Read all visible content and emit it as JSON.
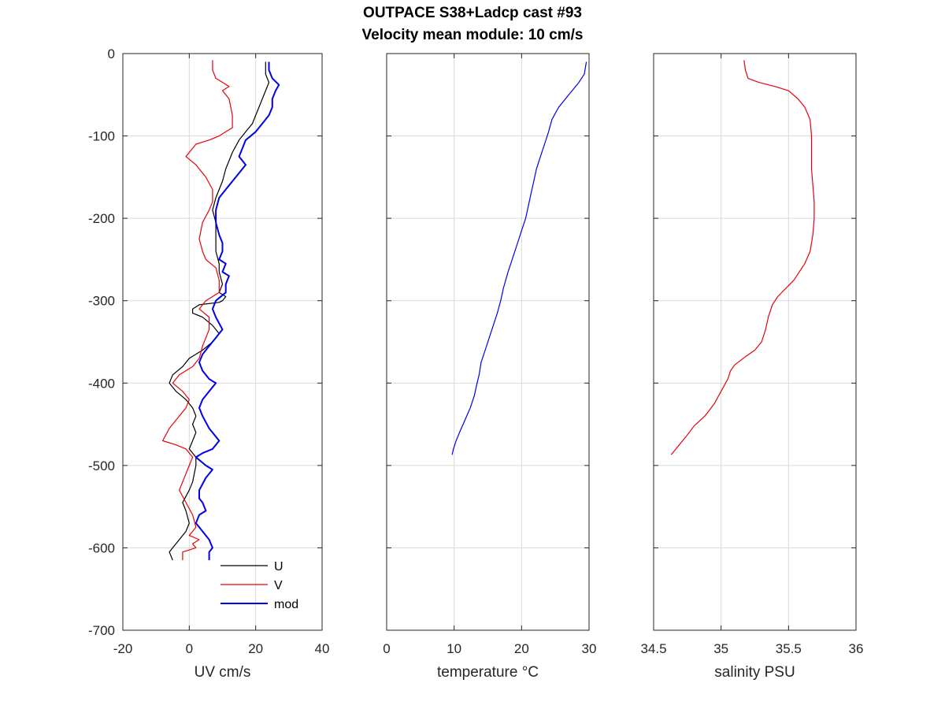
{
  "figure": {
    "title_line1": "OUTPACE S38+Ladcp cast #93",
    "title_line2": "Velocity mean module:  10 cm/s"
  },
  "colors": {
    "u": "#000000",
    "v": "#e8000b",
    "mod": "#0000ee",
    "temperature": "#0000ee",
    "salinity": "#e8000b",
    "grid": "#d9d9d9",
    "axis": "#262626"
  },
  "chart_data": [
    {
      "type": "line",
      "xlabel": "UV cm/s",
      "ylabel": "",
      "xlim": [
        -20,
        40
      ],
      "ylim": [
        -700,
        0
      ],
      "xticks": [
        -20,
        0,
        20,
        40
      ],
      "yticks": [
        0,
        -100,
        -200,
        -300,
        -400,
        -500,
        -600,
        -700
      ],
      "grid": true,
      "legend_position": "bottom-right",
      "series": [
        {
          "name": "U",
          "color": "#000000",
          "x": [
            23,
            23,
            24,
            23,
            22,
            21,
            20,
            19,
            17,
            15,
            13,
            11,
            10,
            9,
            8,
            7,
            8,
            8,
            8,
            9,
            9,
            10,
            9,
            11,
            10,
            9,
            3,
            1,
            1,
            4,
            7,
            9,
            7,
            4,
            0,
            -2,
            -5,
            -6,
            -4,
            -1,
            1,
            2,
            1,
            2,
            1,
            0,
            2,
            2,
            1,
            0,
            -2,
            -1,
            0,
            -1,
            -3,
            -5,
            -6,
            -5
          ],
          "y": [
            -10,
            -25,
            -35,
            -45,
            -55,
            -65,
            -75,
            -85,
            -95,
            -105,
            -120,
            -140,
            -155,
            -165,
            -175,
            -190,
            -205,
            -220,
            -240,
            -255,
            -265,
            -280,
            -290,
            -295,
            -300,
            -302,
            -305,
            -310,
            -315,
            -320,
            -330,
            -340,
            -350,
            -360,
            -370,
            -380,
            -390,
            -400,
            -410,
            -420,
            -430,
            -440,
            -450,
            -460,
            -470,
            -480,
            -490,
            -500,
            -520,
            -530,
            -545,
            -555,
            -570,
            -580,
            -590,
            -600,
            -605,
            -615
          ]
        },
        {
          "name": "V",
          "color": "#e8000b",
          "x": [
            7,
            7,
            8,
            12,
            10,
            12,
            13,
            13,
            11,
            9,
            6,
            2,
            1,
            -1,
            2,
            5,
            7,
            7,
            6,
            4,
            3,
            4,
            5,
            8,
            9,
            9,
            5,
            3,
            6,
            6,
            5,
            4,
            3,
            1,
            -1,
            -3,
            -5,
            -2,
            0,
            -1,
            -4,
            -6,
            -8,
            -4,
            -1,
            1,
            0,
            -1,
            -2,
            -3,
            -1,
            1,
            2,
            0,
            3,
            1,
            2,
            -2,
            -2
          ],
          "y": [
            -8,
            -20,
            -30,
            -40,
            -45,
            -55,
            -75,
            -90,
            -95,
            -100,
            -105,
            -110,
            -115,
            -125,
            -135,
            -150,
            -165,
            -180,
            -190,
            -205,
            -225,
            -240,
            -250,
            -260,
            -275,
            -290,
            -300,
            -310,
            -320,
            -335,
            -345,
            -355,
            -370,
            -380,
            -385,
            -390,
            -400,
            -410,
            -420,
            -430,
            -445,
            -455,
            -470,
            -475,
            -480,
            -490,
            -500,
            -510,
            -520,
            -530,
            -545,
            -560,
            -575,
            -585,
            -590,
            -595,
            -600,
            -605,
            -615
          ]
        },
        {
          "name": "mod",
          "color": "#0000ee",
          "x": [
            24,
            24,
            25,
            27,
            26,
            25,
            25,
            24,
            22,
            20,
            17,
            15,
            17,
            15,
            13,
            11,
            9,
            8,
            8,
            9,
            10,
            10,
            9,
            11,
            10,
            12,
            11,
            11,
            8,
            7,
            8,
            10,
            8,
            6,
            4,
            3,
            4,
            6,
            8,
            6,
            4,
            3,
            4,
            6,
            9,
            7,
            4,
            2,
            5,
            7,
            5,
            3,
            3,
            4,
            5,
            3,
            2,
            4,
            6,
            7,
            6,
            6
          ],
          "y": [
            -10,
            -20,
            -30,
            -38,
            -45,
            -55,
            -65,
            -75,
            -85,
            -95,
            -105,
            -125,
            -135,
            -145,
            -155,
            -165,
            -175,
            -190,
            -205,
            -220,
            -230,
            -240,
            -250,
            -255,
            -265,
            -270,
            -280,
            -290,
            -300,
            -310,
            -320,
            -335,
            -345,
            -355,
            -365,
            -375,
            -385,
            -395,
            -400,
            -410,
            -420,
            -430,
            -440,
            -455,
            -470,
            -480,
            -485,
            -490,
            -500,
            -505,
            -515,
            -530,
            -540,
            -545,
            -555,
            -560,
            -570,
            -580,
            -590,
            -600,
            -605,
            -615
          ]
        }
      ]
    },
    {
      "type": "line",
      "xlabel": "temperature °C",
      "ylabel": "",
      "xlim": [
        0,
        30
      ],
      "ylim": [
        -700,
        0
      ],
      "xticks": [
        0,
        10,
        20,
        30
      ],
      "yticks": [
        0,
        -100,
        -200,
        -300,
        -400,
        -500,
        -600,
        -700
      ],
      "grid": true,
      "series": [
        {
          "color": "#0000ee",
          "x": [
            29.6,
            29.5,
            29.3,
            28.5,
            27.0,
            25.5,
            24.5,
            24.0,
            23.4,
            22.8,
            22.2,
            21.8,
            21.4,
            21.0,
            20.6,
            20.0,
            19.4,
            18.8,
            18.0,
            17.3,
            16.9,
            16.4,
            15.8,
            15.2,
            14.6,
            14.0,
            13.7,
            13.4,
            13.0,
            12.4,
            11.6,
            10.8,
            10.3,
            9.9,
            9.7
          ],
          "y": [
            -10,
            -15,
            -25,
            -35,
            -50,
            -65,
            -80,
            -95,
            -110,
            -125,
            -140,
            -155,
            -170,
            -185,
            -200,
            -215,
            -230,
            -245,
            -265,
            -285,
            -300,
            -315,
            -330,
            -345,
            -360,
            -375,
            -390,
            -400,
            -415,
            -430,
            -445,
            -460,
            -470,
            -480,
            -487
          ]
        }
      ]
    },
    {
      "type": "line",
      "xlabel": "salinity PSU",
      "ylabel": "",
      "xlim": [
        34.5,
        36
      ],
      "ylim": [
        -700,
        0
      ],
      "xticks": [
        34.5,
        35,
        35.5,
        36
      ],
      "tick_labels": [
        "34.5",
        "35",
        "35.5",
        "36"
      ],
      "yticks": [
        0,
        -100,
        -200,
        -300,
        -400,
        -500,
        -600,
        -700
      ],
      "grid": true,
      "series": [
        {
          "color": "#e8000b",
          "x": [
            35.17,
            35.18,
            35.2,
            35.28,
            35.4,
            35.5,
            35.57,
            35.62,
            35.66,
            35.67,
            35.67,
            35.67,
            35.68,
            35.69,
            35.69,
            35.68,
            35.66,
            35.62,
            35.58,
            35.54,
            35.48,
            35.42,
            35.38,
            35.35,
            35.33,
            35.3,
            35.25,
            35.18,
            35.1,
            35.07,
            35.05,
            35.0,
            34.95,
            34.88,
            34.8,
            34.74,
            34.68,
            34.63
          ],
          "y": [
            -8,
            -20,
            -30,
            -35,
            -40,
            -45,
            -55,
            -65,
            -80,
            -100,
            -120,
            -140,
            -160,
            -180,
            -200,
            -220,
            -240,
            -255,
            -265,
            -275,
            -285,
            -295,
            -305,
            -320,
            -335,
            -350,
            -360,
            -368,
            -378,
            -385,
            -395,
            -410,
            -425,
            -440,
            -452,
            -465,
            -477,
            -487
          ]
        }
      ]
    }
  ]
}
